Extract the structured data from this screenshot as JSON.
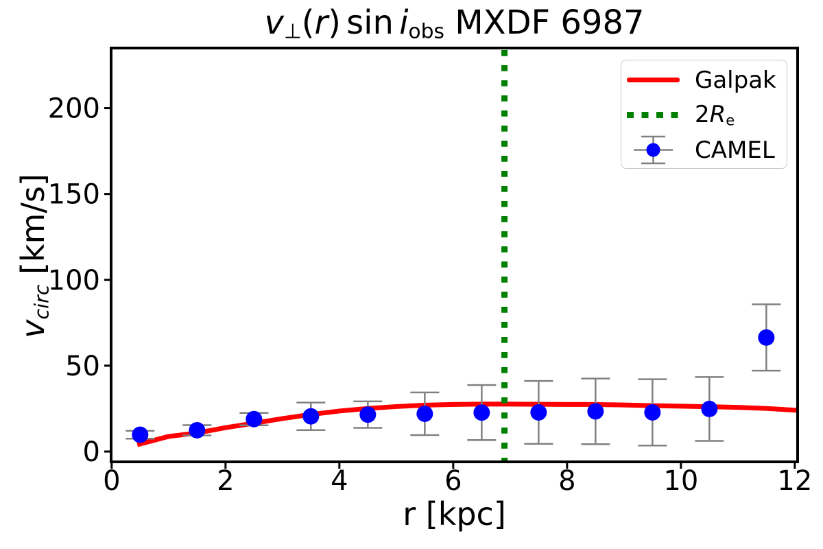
{
  "title": {
    "v": "v",
    "perp": "⊥",
    "open_paren": "(",
    "r": "r",
    "close_paren": ")",
    "sin": "sin",
    "i": "i",
    "obs": "obs",
    "suffix": "MXDF 6987"
  },
  "axes": {
    "xlabel": "r [kpc]",
    "ylabel": {
      "v": "v",
      "sub": "circ",
      "units": " [km/s]"
    }
  },
  "legend": {
    "galpak_label": "Galpak",
    "re_label": {
      "prefix": "2",
      "R": "R",
      "sub": "e"
    },
    "camel_label": "CAMEL"
  },
  "chart_data": {
    "type": "line+scatter-errorbar",
    "title_text": "v⊥(r) sin i_obs MXDF 6987",
    "xlabel": "r [kpc]",
    "ylabel": "v_circ [km/s]",
    "xlim": [
      -0.01,
      12.05
    ],
    "ylim": [
      -6,
      235
    ],
    "xticks": [
      0,
      2,
      4,
      6,
      8,
      10,
      12
    ],
    "yticks": [
      0,
      50,
      100,
      150,
      200
    ],
    "grid": false,
    "legend_position": "upper right",
    "series": [
      {
        "name": "Galpak",
        "type": "line",
        "color": "#ff0000",
        "linewidth": 7,
        "x": [
          0.45,
          1.0,
          1.5,
          2.0,
          2.5,
          3.0,
          3.5,
          4.0,
          4.5,
          5.0,
          5.5,
          6.0,
          6.5,
          7.0,
          7.5,
          8.0,
          8.5,
          9.0,
          9.5,
          10.0,
          10.5,
          11.0,
          11.5,
          12.05
        ],
        "y": [
          4.0,
          8.8,
          10.8,
          13.9,
          16.5,
          19.2,
          21.6,
          23.6,
          25.1,
          26.2,
          27.0,
          27.4,
          27.6,
          27.6,
          27.5,
          27.4,
          27.4,
          27.1,
          26.7,
          26.4,
          26.1,
          25.7,
          25.1,
          24.0
        ]
      },
      {
        "name": "2Re",
        "type": "vline",
        "color": "#008000",
        "x": 6.9,
        "linestyle": "dotted",
        "linewidth": 9
      },
      {
        "name": "CAMEL",
        "type": "scatter-errorbar",
        "color": "#0000ff",
        "errorbar_color": "#808080",
        "marker_radius": 12,
        "x": [
          0.5,
          1.5,
          2.5,
          3.5,
          4.5,
          5.5,
          6.5,
          7.5,
          8.5,
          9.5,
          10.5,
          11.5
        ],
        "y": [
          9.8,
          12.4,
          18.9,
          20.5,
          21.5,
          22.0,
          22.7,
          22.8,
          23.4,
          22.8,
          24.8,
          66.4
        ],
        "yerr": [
          2.3,
          3.0,
          3.6,
          8.0,
          7.7,
          12.4,
          16.0,
          18.3,
          19.1,
          19.3,
          18.6,
          19.3
        ]
      }
    ]
  }
}
